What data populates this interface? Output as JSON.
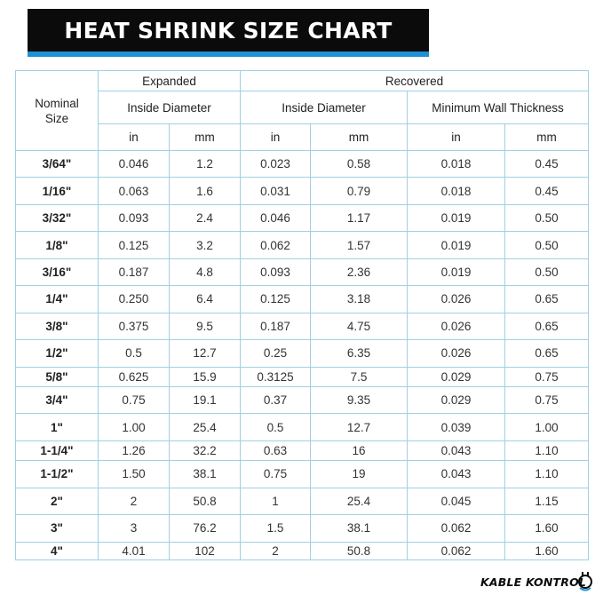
{
  "title": "HEAT SHRINK SIZE CHART",
  "header": {
    "nominal_size": "Nominal Size",
    "expanded": "Expanded",
    "recovered": "Recovered",
    "expanded_inside_diameter": "Inside Diameter",
    "recovered_inside_diameter": "Inside Diameter",
    "min_wall_thickness": "Minimum Wall Thickness",
    "unit_in": "in",
    "unit_mm": "mm"
  },
  "rows": [
    {
      "size": "3/64\"",
      "exp_in": "0.046",
      "exp_mm": "1.2",
      "rec_in": "0.023",
      "rec_mm": "0.58",
      "wall_in": "0.018",
      "wall_mm": "0.45"
    },
    {
      "size": "1/16\"",
      "exp_in": "0.063",
      "exp_mm": "1.6",
      "rec_in": "0.031",
      "rec_mm": "0.79",
      "wall_in": "0.018",
      "wall_mm": "0.45"
    },
    {
      "size": "3/32\"",
      "exp_in": "0.093",
      "exp_mm": "2.4",
      "rec_in": "0.046",
      "rec_mm": "1.17",
      "wall_in": "0.019",
      "wall_mm": "0.50"
    },
    {
      "size": "1/8\"",
      "exp_in": "0.125",
      "exp_mm": "3.2",
      "rec_in": "0.062",
      "rec_mm": "1.57",
      "wall_in": "0.019",
      "wall_mm": "0.50"
    },
    {
      "size": "3/16\"",
      "exp_in": "0.187",
      "exp_mm": "4.8",
      "rec_in": "0.093",
      "rec_mm": "2.36",
      "wall_in": "0.019",
      "wall_mm": "0.50"
    },
    {
      "size": "1/4\"",
      "exp_in": "0.250",
      "exp_mm": "6.4",
      "rec_in": "0.125",
      "rec_mm": "3.18",
      "wall_in": "0.026",
      "wall_mm": "0.65"
    },
    {
      "size": "3/8\"",
      "exp_in": "0.375",
      "exp_mm": "9.5",
      "rec_in": "0.187",
      "rec_mm": "4.75",
      "wall_in": "0.026",
      "wall_mm": "0.65"
    },
    {
      "size": "1/2\"",
      "exp_in": "0.5",
      "exp_mm": "12.7",
      "rec_in": "0.25",
      "rec_mm": "6.35",
      "wall_in": "0.026",
      "wall_mm": "0.65"
    },
    {
      "size": "5/8\"",
      "exp_in": "0.625",
      "exp_mm": "15.9",
      "rec_in": "0.3125",
      "rec_mm": "7.5",
      "wall_in": "0.029",
      "wall_mm": "0.75"
    },
    {
      "size": "3/4\"",
      "exp_in": "0.75",
      "exp_mm": "19.1",
      "rec_in": "0.37",
      "rec_mm": "9.35",
      "wall_in": "0.029",
      "wall_mm": "0.75"
    },
    {
      "size": "1\"",
      "exp_in": "1.00",
      "exp_mm": "25.4",
      "rec_in": "0.5",
      "rec_mm": "12.7",
      "wall_in": "0.039",
      "wall_mm": "1.00"
    },
    {
      "size": "1-1/4\"",
      "exp_in": "1.26",
      "exp_mm": "32.2",
      "rec_in": "0.63",
      "rec_mm": "16",
      "wall_in": "0.043",
      "wall_mm": "1.10"
    },
    {
      "size": "1-1/2\"",
      "exp_in": "1.50",
      "exp_mm": "38.1",
      "rec_in": "0.75",
      "rec_mm": "19",
      "wall_in": "0.043",
      "wall_mm": "1.10"
    },
    {
      "size": "2\"",
      "exp_in": "2",
      "exp_mm": "50.8",
      "rec_in": "1",
      "rec_mm": "25.4",
      "wall_in": "0.045",
      "wall_mm": "1.15"
    },
    {
      "size": "3\"",
      "exp_in": "3",
      "exp_mm": "76.2",
      "rec_in": "1.5",
      "rec_mm": "38.1",
      "wall_in": "0.062",
      "wall_mm": "1.60"
    },
    {
      "size": "4\"",
      "exp_in": "4.01",
      "exp_mm": "102",
      "rec_in": "2",
      "rec_mm": "50.8",
      "wall_in": "0.062",
      "wall_mm": "1.60"
    }
  ],
  "logo": {
    "text": "KABLE KONTROL",
    "accent_color": "#1e90d6"
  },
  "colors": {
    "banner_bg": "#0b0b0b",
    "banner_accent": "#1e90d6",
    "grid_line": "#9fd0e6"
  }
}
